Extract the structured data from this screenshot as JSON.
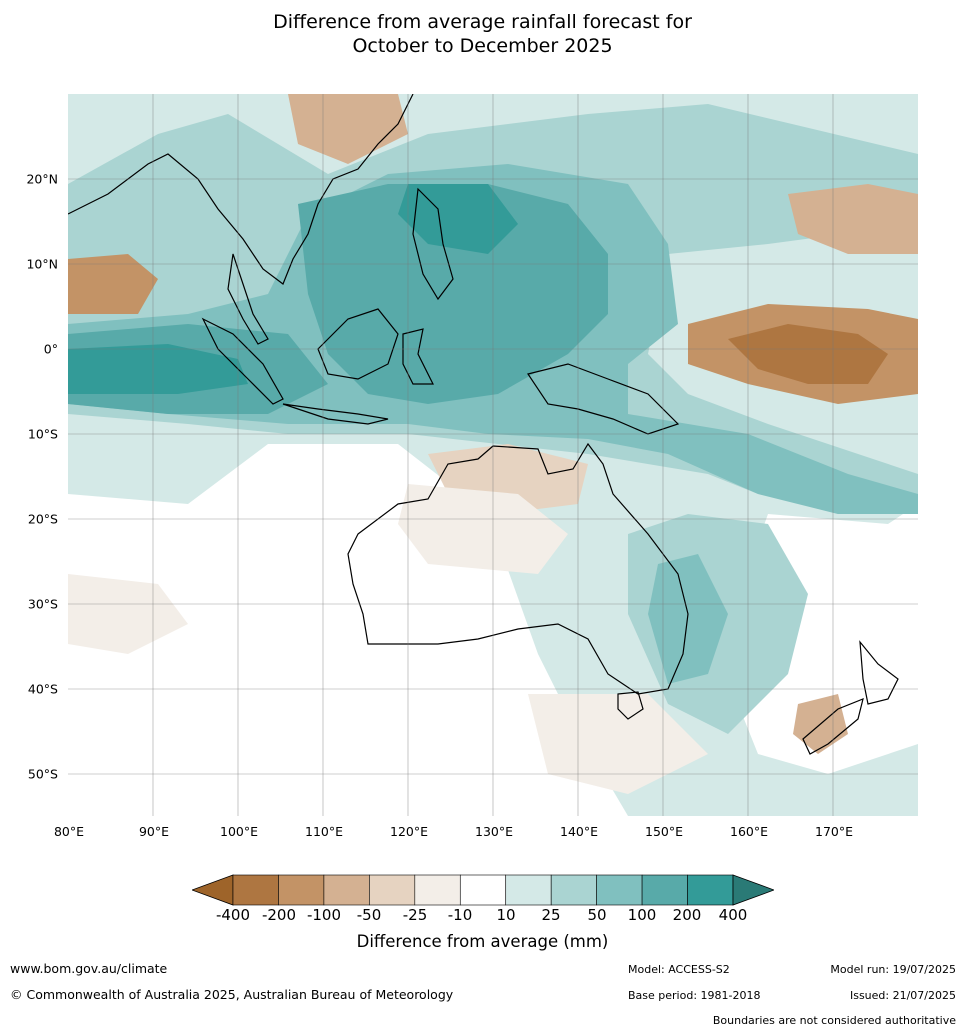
{
  "title": {
    "line1": "Difference from average rainfall forecast for",
    "line2": "October to December 2025"
  },
  "map": {
    "type": "rainfall-anomaly-forecast",
    "region": "Australia, Maritime Continent and Western Pacific",
    "lon_range": [
      80,
      180
    ],
    "lat_range": [
      -55,
      30
    ],
    "latitude_labels": [
      "20°N",
      "10°N",
      "0°",
      "10°S",
      "20°S",
      "30°S",
      "40°S",
      "50°S"
    ],
    "longitude_labels": [
      "80°E",
      "90°E",
      "100°E",
      "110°E",
      "120°E",
      "130°E",
      "140°E",
      "150°E",
      "160°E",
      "170°E"
    ],
    "gridlines": true
  },
  "legend": {
    "title": "Difference from average (mm)",
    "tick_labels": [
      "-400",
      "-200",
      "-100",
      "-50",
      "-25",
      "-10",
      "10",
      "25",
      "50",
      "100",
      "200",
      "400"
    ],
    "colors": [
      "#9e642a",
      "#ae7641",
      "#c39366",
      "#d4b192",
      "#e6d3c1",
      "#f3eee8",
      "#ffffff",
      "#d4e9e7",
      "#aad4d2",
      "#80c0bf",
      "#58aaa9",
      "#339b98",
      "#2a7a76"
    ]
  },
  "footer": {
    "website": "www.bom.gov.au/climate",
    "copyright": "© Commonwealth of Australia 2025, Australian Bureau of Meteorology",
    "model": "Model: ACCESS-S2",
    "base_period": "Base period: 1981-2018",
    "model_run": "Model run: 19/07/2025",
    "issued": "Issued: 21/07/2025",
    "disclaimer": "Boundaries are not considered authoritative"
  }
}
